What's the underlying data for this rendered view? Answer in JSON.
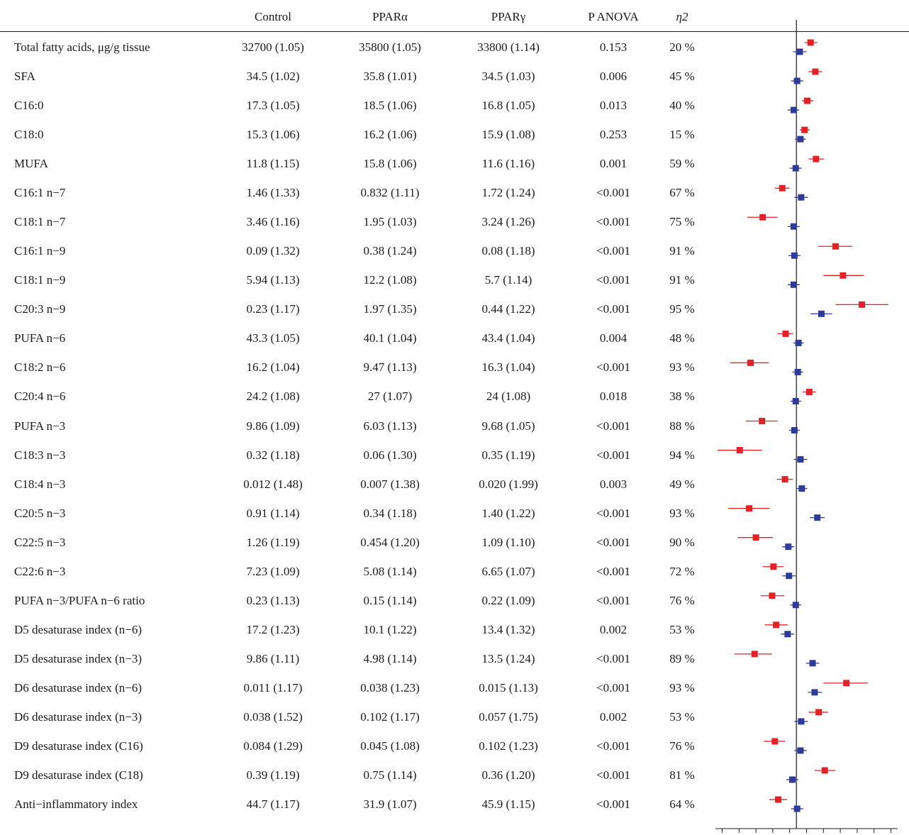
{
  "table": {
    "headers": [
      "",
      "Control",
      "PPARα",
      "PPARγ",
      "P ANOVA",
      "η2"
    ],
    "rows": [
      {
        "label": "Total fatty acids, μg/g tissue",
        "control": "32700 (1.05)",
        "ppara": "35800 (1.05)",
        "pparg": "33800 (1.14)",
        "p": "0.153",
        "eta": "20 %"
      },
      {
        "label": "SFA",
        "control": "34.5 (1.02)",
        "ppara": "35.8 (1.01)",
        "pparg": "34.5 (1.03)",
        "p": "0.006",
        "eta": "45 %"
      },
      {
        "label": "C16:0",
        "control": "17.3 (1.05)",
        "ppara": "18.5 (1.06)",
        "pparg": "16.8 (1.05)",
        "p": "0.013",
        "eta": "40 %"
      },
      {
        "label": "C18:0",
        "control": "15.3 (1.06)",
        "ppara": "16.2 (1.06)",
        "pparg": "15.9 (1.08)",
        "p": "0.253",
        "eta": "15 %"
      },
      {
        "label": "MUFA",
        "control": "11.8 (1.15)",
        "ppara": "15.8 (1.06)",
        "pparg": "11.6 (1.16)",
        "p": "0.001",
        "eta": "59 %"
      },
      {
        "label": "C16:1 n−7",
        "control": "1.46 (1.33)",
        "ppara": "0.832 (1.11)",
        "pparg": "1.72 (1.24)",
        "p": "<0.001",
        "eta": "67 %"
      },
      {
        "label": "C18:1 n−7",
        "control": "3.46 (1.16)",
        "ppara": "1.95 (1.03)",
        "pparg": "3.24 (1.26)",
        "p": "<0.001",
        "eta": "75 %"
      },
      {
        "label": "C16:1 n−9",
        "control": "0.09 (1.32)",
        "ppara": "0.38 (1.24)",
        "pparg": "0.08 (1.18)",
        "p": "<0.001",
        "eta": "91 %"
      },
      {
        "label": "C18:1 n−9",
        "control": "5.94 (1.13)",
        "ppara": "12.2 (1.08)",
        "pparg": "5.7 (1.14)",
        "p": "<0.001",
        "eta": "91 %"
      },
      {
        "label": "C20:3 n−9",
        "control": "0.23 (1.17)",
        "ppara": "1.97 (1.35)",
        "pparg": "0.44 (1.22)",
        "p": "<0.001",
        "eta": "95 %"
      },
      {
        "label": "PUFA n−6",
        "control": "43.3 (1.05)",
        "ppara": "40.1 (1.04)",
        "pparg": "43.4 (1.04)",
        "p": "0.004",
        "eta": "48 %"
      },
      {
        "label": "C18:2 n−6",
        "control": "16.2 (1.04)",
        "ppara": "9.47 (1.13)",
        "pparg": "16.3 (1.04)",
        "p": "<0.001",
        "eta": "93 %"
      },
      {
        "label": "C20:4 n−6",
        "control": "24.2 (1.08)",
        "ppara": "27 (1.07)",
        "pparg": "24 (1.08)",
        "p": "0.018",
        "eta": "38 %"
      },
      {
        "label": "PUFA n−3",
        "control": "9.86 (1.09)",
        "ppara": "6.03 (1.13)",
        "pparg": "9.68 (1.05)",
        "p": "<0.001",
        "eta": "88 %"
      },
      {
        "label": "C18:3 n−3",
        "control": "0.32 (1.18)",
        "ppara": "0.06 (1.30)",
        "pparg": "0.35 (1.19)",
        "p": "<0.001",
        "eta": "94 %"
      },
      {
        "label": "C18:4 n−3",
        "control": "0.012 (1.48)",
        "ppara": "0.007 (1.38)",
        "pparg": "0.020 (1.99)",
        "p": "0.003",
        "eta": "49 %"
      },
      {
        "label": "C20:5 n−3",
        "control": "0.91 (1.14)",
        "ppara": "0.34 (1.18)",
        "pparg": "1.40 (1.22)",
        "p": "<0.001",
        "eta": "93 %"
      },
      {
        "label": "C22:5 n−3",
        "control": "1.26 (1.19)",
        "ppara": "0.454 (1.20)",
        "pparg": "1.09 (1.10)",
        "p": "<0.001",
        "eta": "90 %"
      },
      {
        "label": "C22:6 n−3",
        "control": "7.23 (1.09)",
        "ppara": "5.08 (1.14)",
        "pparg": "6.65 (1.07)",
        "p": "<0.001",
        "eta": "72 %"
      },
      {
        "label": "PUFA n−3/PUFA n−6 ratio",
        "control": "0.23 (1.13)",
        "ppara": "0.15 (1.14)",
        "pparg": "0.22 (1.09)",
        "p": "<0.001",
        "eta": "76 %"
      },
      {
        "label": "D5 desaturase index (n−6)",
        "control": "17.2 (1.23)",
        "ppara": "10.1 (1.22)",
        "pparg": "13.4 (1.32)",
        "p": "0.002",
        "eta": "53 %"
      },
      {
        "label": "D5 desaturase index (n−3)",
        "control": "9.86 (1.11)",
        "ppara": "4.98 (1.14)",
        "pparg": "13.5 (1.24)",
        "p": "<0.001",
        "eta": "89 %"
      },
      {
        "label": "D6 desaturase index (n−6)",
        "control": "0.011 (1.17)",
        "ppara": "0.038 (1.23)",
        "pparg": "0.015 (1.13)",
        "p": "<0.001",
        "eta": "93 %"
      },
      {
        "label": "D6 desaturase index (n−3)",
        "control": "0.038 (1.52)",
        "ppara": "0.102 (1.17)",
        "pparg": "0.057 (1.75)",
        "p": "0.002",
        "eta": "53 %"
      },
      {
        "label": "D9 desaturase index (C16)",
        "control": "0.084 (1.29)",
        "ppara": "0.045 (1.08)",
        "pparg": "0.102 (1.23)",
        "p": "<0.001",
        "eta": "76 %"
      },
      {
        "label": "D9 desaturase index (C18)",
        "control": "0.39 (1.19)",
        "ppara": "0.75 (1.14)",
        "pparg": "0.36 (1.20)",
        "p": "<0.001",
        "eta": "81 %"
      },
      {
        "label": "Anti−inflammatory index",
        "control": "44.7 (1.17)",
        "ppara": "31.9 (1.07)",
        "pparg": "45.9 (1.15)",
        "p": "<0.001",
        "eta": "64 %"
      }
    ]
  },
  "chart_data": {
    "type": "scatter",
    "title": "",
    "xlabel": "",
    "ylabel": "",
    "xlim": [
      -12,
      15
    ],
    "reference_line": 0,
    "x_ticks": [
      "−11",
      "−8.5",
      "−6",
      "−3.5",
      "−1",
      "1.5",
      "4",
      "6.5",
      "9",
      "11.5",
      "14"
    ],
    "x_tick_values": [
      -11,
      -8.5,
      -6,
      -3.5,
      -1,
      1.5,
      4,
      6.5,
      9,
      11.5,
      14
    ],
    "grid": false,
    "categories": [
      "Total fatty acids, μg/g tissue",
      "SFA",
      "C16:0",
      "C18:0",
      "MUFA",
      "C16:1 n−7",
      "C18:1 n−7",
      "C16:1 n−9",
      "C18:1 n−9",
      "C20:3 n−9",
      "PUFA n−6",
      "C18:2 n−6",
      "C20:4 n−6",
      "PUFA n−3",
      "C18:3 n−3",
      "C18:4 n−3",
      "C20:5 n−3",
      "C22:5 n−3",
      "C22:6 n−3",
      "PUFA n−3/PUFA n−6 ratio",
      "D5 desaturase index (n−6)",
      "D5 desaturase index (n−3)",
      "D6 desaturase index (n−6)",
      "D6 desaturase index (n−3)",
      "D9 desaturase index (C16)",
      "D9 desaturase index (C18)",
      "Anti−inflammatory index"
    ],
    "series": [
      {
        "color": "#e32228",
        "values": [
          2.1,
          2.8,
          1.6,
          1.2,
          2.9,
          -2.1,
          -5.0,
          5.8,
          6.9,
          9.7,
          -1.6,
          -6.8,
          1.9,
          -5.1,
          -8.4,
          -1.7,
          -7.0,
          -6.0,
          -3.4,
          -3.6,
          -3.0,
          -6.2,
          7.4,
          3.3,
          -3.2,
          4.2,
          -2.7
        ],
        "lower": [
          1.2,
          1.8,
          0.8,
          0.5,
          1.8,
          -3.2,
          -7.3,
          3.2,
          4.0,
          5.8,
          -2.8,
          -9.8,
          0.9,
          -7.5,
          -11.7,
          -2.9,
          -10.1,
          -8.7,
          -5.0,
          -5.3,
          -4.7,
          -9.2,
          4.0,
          1.8,
          -4.8,
          2.7,
          -4.0
        ],
        "upper": [
          3.1,
          3.8,
          2.5,
          2.0,
          4.1,
          -1.0,
          -2.8,
          8.3,
          10.0,
          13.6,
          -0.5,
          -4.1,
          2.9,
          -2.8,
          -5.1,
          -0.5,
          -4.0,
          -3.5,
          -1.9,
          -1.8,
          -1.3,
          -3.6,
          10.6,
          4.7,
          -1.7,
          5.8,
          -1.4
        ]
      },
      {
        "color": "#2e3b99",
        "values": [
          0.5,
          0.1,
          -0.4,
          0.6,
          -0.1,
          0.7,
          -0.4,
          -0.3,
          -0.4,
          3.7,
          0.3,
          0.2,
          -0.1,
          -0.3,
          0.6,
          0.8,
          3.1,
          -1.2,
          -1.1,
          -0.1,
          -1.3,
          2.4,
          2.7,
          0.7,
          0.6,
          -0.6,
          0.1
        ],
        "lower": [
          -0.5,
          -0.8,
          -1.3,
          -0.2,
          -1.0,
          -0.3,
          -1.3,
          -1.2,
          -1.3,
          2.1,
          -0.5,
          -0.6,
          -0.9,
          -1.1,
          -0.4,
          0.0,
          2.0,
          -2.1,
          -2.1,
          -0.9,
          -2.3,
          1.4,
          1.7,
          -0.3,
          -0.3,
          -1.5,
          -0.8
        ],
        "upper": [
          1.5,
          1.0,
          0.4,
          1.4,
          0.8,
          1.7,
          0.5,
          0.6,
          0.5,
          5.3,
          1.1,
          1.0,
          0.7,
          0.5,
          1.6,
          1.6,
          4.2,
          -0.3,
          -0.1,
          0.7,
          -0.3,
          3.4,
          3.8,
          1.7,
          1.5,
          0.3,
          1.0
        ]
      }
    ]
  }
}
